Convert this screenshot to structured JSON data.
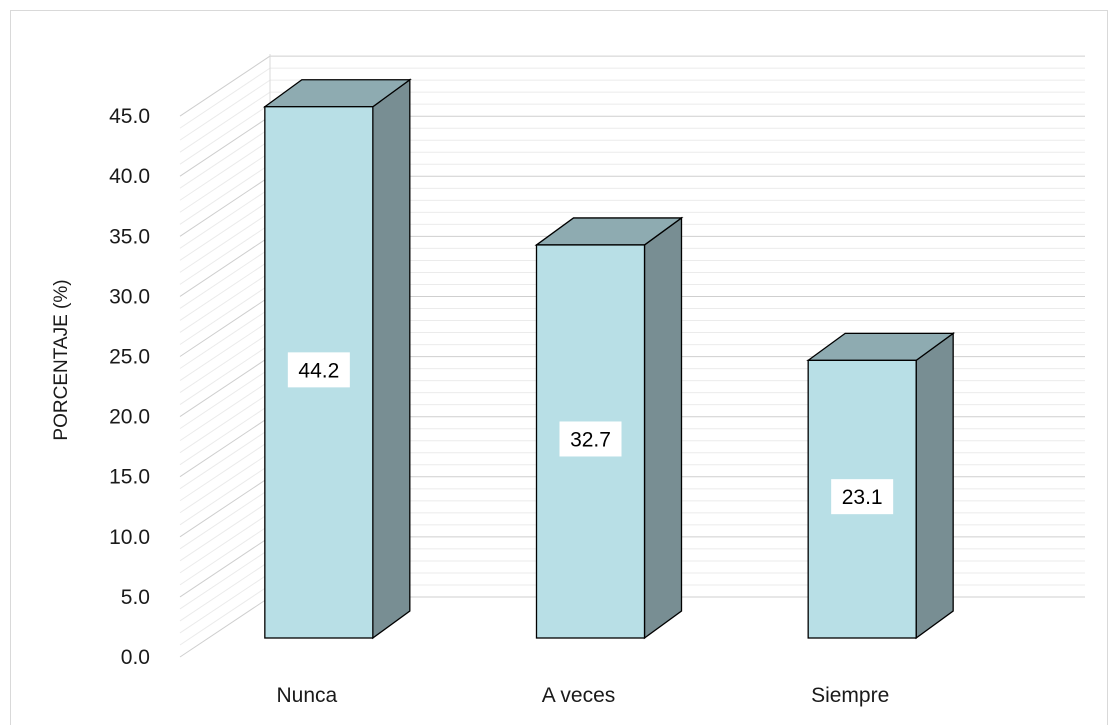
{
  "chart_data": {
    "type": "bar",
    "categories": [
      "Nunca",
      "A veces",
      "Siempre"
    ],
    "values": [
      44.2,
      32.7,
      23.1
    ],
    "data_labels": [
      "44.2",
      "32.7",
      "23.1"
    ],
    "title": "",
    "xlabel": "",
    "ylabel": "PORCENTAJE (%)",
    "ylim": [
      0,
      45
    ],
    "yticks": [
      "0.0",
      "5.0",
      "10.0",
      "15.0",
      "20.0",
      "25.0",
      "30.0",
      "35.0",
      "40.0",
      "45.0"
    ],
    "grid": true,
    "three_d": true,
    "legend": "none",
    "colors": {
      "bar_front": "#b8dfe6",
      "bar_top": "#8eabb1",
      "bar_side": "#788e93",
      "grid": "#d9d9d9"
    }
  }
}
